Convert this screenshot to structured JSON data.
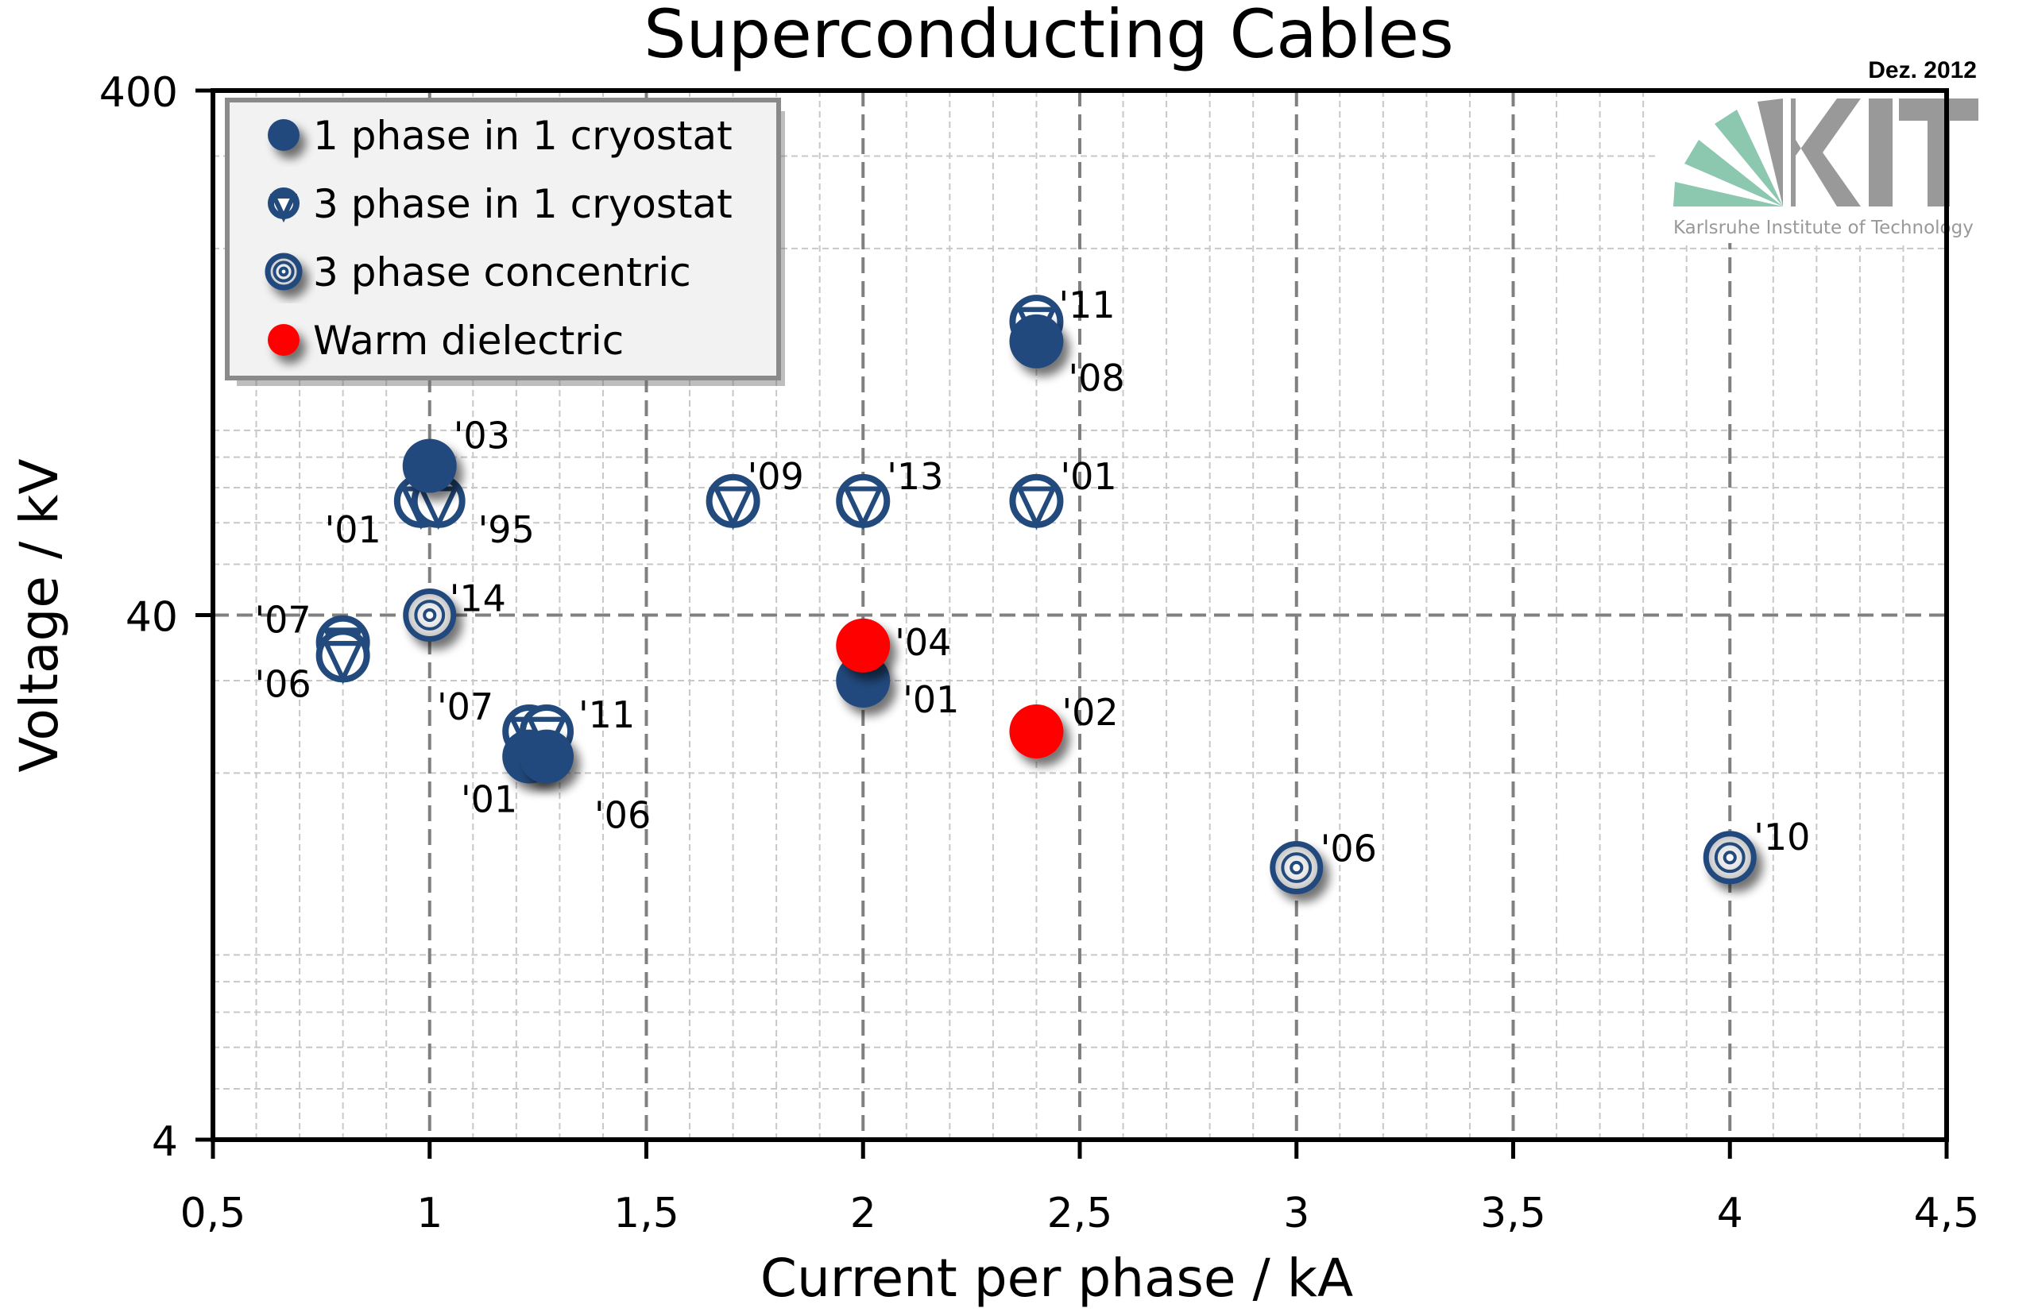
{
  "chart_data": {
    "type": "scatter",
    "title": "Superconducting Cables",
    "annotation": "Dez. 2012",
    "xlabel": "Current per phase / kA",
    "ylabel": "Voltage / kV",
    "xlim": [
      0.5,
      4.5
    ],
    "ylim": [
      4,
      400
    ],
    "yscale": "log",
    "x_ticks": [
      0.5,
      1,
      1.5,
      2,
      2.5,
      3,
      3.5,
      4,
      4.5
    ],
    "x_tick_labels": [
      "0,5",
      "1",
      "1,5",
      "2",
      "2,5",
      "3",
      "3,5",
      "4",
      "4,5"
    ],
    "y_ticks": [
      4,
      40,
      400
    ],
    "y_tick_labels": [
      "4",
      "40",
      "400"
    ],
    "grid": true,
    "legend_position": "top-left",
    "colors": {
      "navy": "#234a7d",
      "red": "#ff0000",
      "axis": "#000000",
      "grid_major": "#808080",
      "grid_minor": "#c8c8c8",
      "legend_bg": "#f2f2f2",
      "logo_green": "#8cc7b0",
      "logo_gray": "#999999"
    },
    "series": [
      {
        "name": "1 phase in 1 cryostat",
        "marker": "filled-circle",
        "points": [
          {
            "x": 1.0,
            "y": 77,
            "label": "'03"
          },
          {
            "x": 2.4,
            "y": 133,
            "label": "'08"
          },
          {
            "x": 2.0,
            "y": 30,
            "label": "'01"
          },
          {
            "x": 1.23,
            "y": 21.5,
            "label": "'01"
          },
          {
            "x": 1.27,
            "y": 21.5,
            "label": "'06"
          }
        ]
      },
      {
        "name": "3 phase in 1 cryostat",
        "marker": "circle-triangle",
        "points": [
          {
            "x": 0.98,
            "y": 66,
            "label": "'01"
          },
          {
            "x": 1.02,
            "y": 66,
            "label": "'95"
          },
          {
            "x": 1.7,
            "y": 66,
            "label": "'09"
          },
          {
            "x": 2.0,
            "y": 66,
            "label": "'13"
          },
          {
            "x": 2.4,
            "y": 66,
            "label": "'01"
          },
          {
            "x": 2.4,
            "y": 145,
            "label": "'11"
          },
          {
            "x": 0.8,
            "y": 35.5,
            "label": "'07"
          },
          {
            "x": 0.8,
            "y": 33.5,
            "label": "'06"
          },
          {
            "x": 1.23,
            "y": 24,
            "label": "'07"
          },
          {
            "x": 1.27,
            "y": 24,
            "label": "'11"
          }
        ]
      },
      {
        "name": "3 phase concentric",
        "marker": "concentric",
        "points": [
          {
            "x": 1.0,
            "y": 40,
            "label": "'14"
          },
          {
            "x": 3.0,
            "y": 13.2,
            "label": "'06"
          },
          {
            "x": 4.0,
            "y": 13.8,
            "label": "'10"
          }
        ]
      },
      {
        "name": "Warm dielectric",
        "marker": "filled-circle",
        "points": [
          {
            "x": 2.0,
            "y": 35,
            "label": "'04"
          },
          {
            "x": 2.4,
            "y": 24,
            "label": "'02"
          }
        ]
      }
    ]
  },
  "logo": {
    "text": "KIT",
    "subtitle": "Karlsruhe Institute of Technology"
  }
}
